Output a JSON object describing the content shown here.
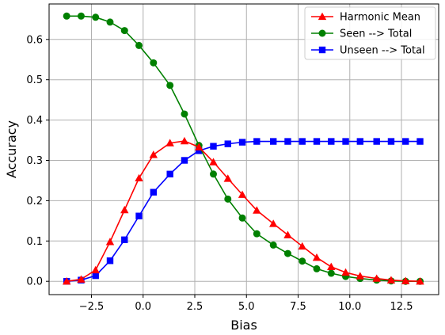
{
  "chart_data": {
    "type": "line",
    "title": "",
    "xlabel": "Bias",
    "ylabel": "Accuracy",
    "xlim": [
      -4.55,
      14.3
    ],
    "ylim": [
      -0.033,
      0.688
    ],
    "xticks": [
      -2.5,
      0.0,
      2.5,
      5.0,
      7.5,
      10.0,
      12.5
    ],
    "xtick_labels": [
      "−2.5",
      "0.0",
      "2.5",
      "5.0",
      "7.5",
      "10.0",
      "12.5"
    ],
    "yticks": [
      0.0,
      0.1,
      0.2,
      0.3,
      0.4,
      0.5,
      0.6
    ],
    "ytick_labels": [
      "0.0",
      "0.1",
      "0.2",
      "0.3",
      "0.4",
      "0.5",
      "0.6"
    ],
    "grid": true,
    "legend_position": "top-right",
    "x": [
      -3.7,
      -3.0,
      -2.3,
      -1.6,
      -0.9,
      -0.2,
      0.5,
      1.3,
      2.0,
      2.7,
      3.4,
      4.1,
      4.8,
      5.5,
      6.3,
      7.0,
      7.7,
      8.4,
      9.1,
      9.8,
      10.5,
      11.3,
      12.0,
      12.7,
      13.4
    ],
    "series": [
      {
        "name": "Harmonic Mean",
        "color": "#ff0000",
        "marker": "triangle",
        "values": [
          0.0,
          0.005,
          0.028,
          0.098,
          0.177,
          0.256,
          0.314,
          0.343,
          0.348,
          0.333,
          0.296,
          0.255,
          0.215,
          0.176,
          0.143,
          0.115,
          0.087,
          0.059,
          0.036,
          0.022,
          0.013,
          0.007,
          0.003,
          0.001,
          0.0
        ]
      },
      {
        "name": "Seen --> Total",
        "color": "#008000",
        "marker": "circle",
        "values": [
          0.658,
          0.658,
          0.655,
          0.643,
          0.622,
          0.585,
          0.542,
          0.486,
          0.415,
          0.337,
          0.266,
          0.204,
          0.157,
          0.118,
          0.09,
          0.069,
          0.05,
          0.031,
          0.02,
          0.012,
          0.007,
          0.003,
          0.001,
          0.0,
          0.0
        ]
      },
      {
        "name": "Unseen --> Total",
        "color": "#0000ff",
        "marker": "square",
        "values": [
          0.0,
          0.003,
          0.014,
          0.051,
          0.103,
          0.162,
          0.221,
          0.266,
          0.3,
          0.324,
          0.335,
          0.341,
          0.345,
          0.347,
          0.347,
          0.347,
          0.347,
          0.347,
          0.347,
          0.347,
          0.347,
          0.347,
          0.347,
          0.347,
          0.347
        ]
      }
    ]
  }
}
